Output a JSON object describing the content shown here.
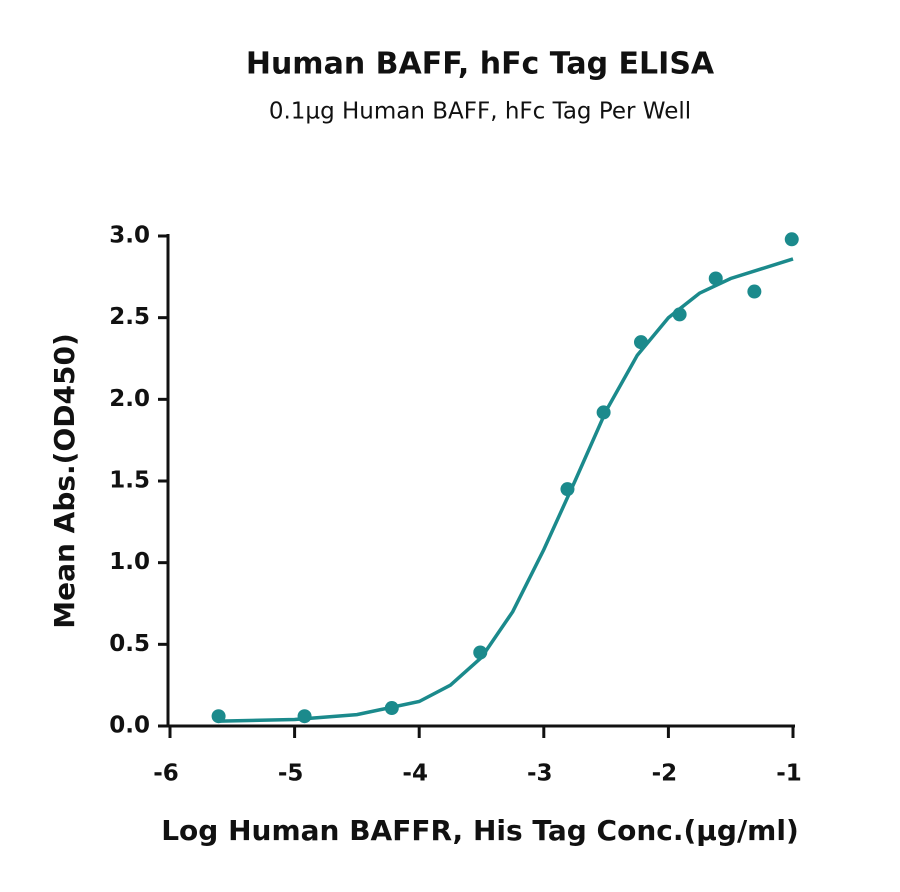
{
  "chart_data": {
    "type": "scatter",
    "title": "Human BAFF, hFc Tag ELISA",
    "subtitle": "0.1µg Human BAFF, hFc Tag Per Well",
    "x_label": "Log Human BAFFR, His Tag Conc.(µg/ml)",
    "y_label": "Mean Abs.(OD450)",
    "xlim": [
      -6,
      -1
    ],
    "xticks": [
      -6,
      -5,
      -4,
      -3,
      -2,
      -1
    ],
    "ylim": [
      0,
      3
    ],
    "yticks": [
      {
        "value": 0,
        "label": "0.0"
      },
      {
        "value": 0.5,
        "label": "0.5"
      },
      {
        "value": 1,
        "label": "1.0"
      },
      {
        "value": 1.5,
        "label": "1.5"
      },
      {
        "value": 2,
        "label": "2.0"
      },
      {
        "value": 2.5,
        "label": "2.5"
      },
      {
        "value": 3,
        "label": "3.0"
      }
    ],
    "series": [
      {
        "type": "scatter",
        "color": "#1b8a8c",
        "x": [
          -5.61,
          -4.92,
          -4.22,
          -3.51,
          -2.81,
          -2.52,
          -2.22,
          -1.91,
          -1.62,
          -1.31,
          -1.01
        ],
        "values": [
          0.06,
          0.06,
          0.11,
          0.45,
          1.45,
          1.92,
          2.35,
          2.52,
          2.74,
          2.66,
          2.98
        ]
      },
      {
        "type": "line",
        "color": "#1b8a8c",
        "x": [
          -5.6,
          -5,
          -4.5,
          -4,
          -3.75,
          -3.5,
          -3.25,
          -3,
          -2.75,
          -2.5,
          -2.25,
          -2,
          -1.75,
          -1.5,
          -1.25,
          -1
        ],
        "values": [
          0.03,
          0.04,
          0.07,
          0.15,
          0.25,
          0.42,
          0.7,
          1.08,
          1.5,
          1.93,
          2.27,
          2.5,
          2.65,
          2.74,
          2.8,
          2.86
        ]
      }
    ]
  }
}
